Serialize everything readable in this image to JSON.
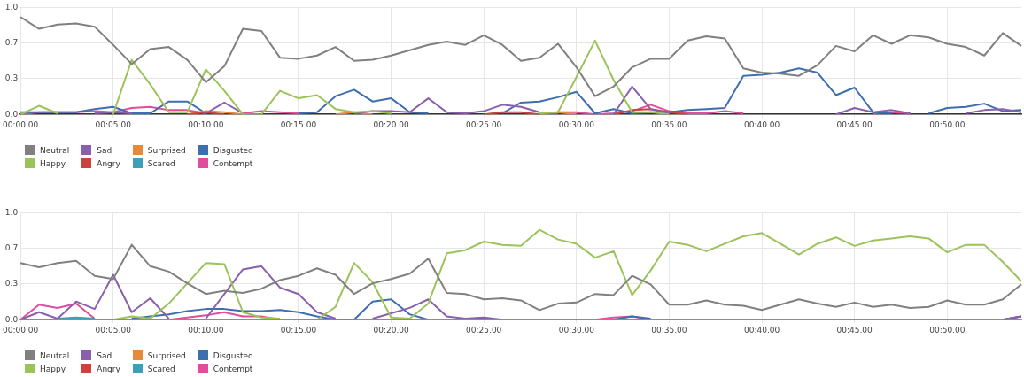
{
  "chart_data": [
    {
      "type": "line",
      "categories": [
        "00:00.00",
        null,
        null,
        null,
        null,
        "00:05.00",
        null,
        null,
        null,
        null,
        "00:10.00",
        null,
        null,
        null,
        null,
        "00:15.00",
        null,
        null,
        null,
        null,
        "00:20.00",
        null,
        null,
        null,
        null,
        "00:25.00",
        null,
        null,
        null,
        null,
        "00:30.00",
        null,
        null,
        null,
        null,
        "00:35.00",
        null,
        null,
        null,
        null,
        "00:40.00",
        null,
        null,
        null,
        null,
        "00:45.00",
        null,
        null,
        null,
        null,
        "00:50.00",
        null,
        null,
        null,
        null
      ],
      "ylim": [
        0,
        1
      ],
      "yticks": [
        {
          "value": 0,
          "label": "0.0"
        },
        {
          "value": 0.333,
          "label": "0.3"
        },
        {
          "value": 0.667,
          "label": "0.7"
        },
        {
          "value": 1,
          "label": "1.0"
        }
      ],
      "grid": true,
      "legend": "bottom",
      "series": [
        {
          "name": "Neutral",
          "color": "#808080",
          "values": [
            0.91,
            0.8,
            0.84,
            0.85,
            0.82,
            0.65,
            0.47,
            0.61,
            0.63,
            0.51,
            0.3,
            0.45,
            0.8,
            0.78,
            0.53,
            0.52,
            0.55,
            0.63,
            0.5,
            0.51,
            0.55,
            0.6,
            0.65,
            0.68,
            0.65,
            0.74,
            0.65,
            0.5,
            0.53,
            0.66,
            0.44,
            0.17,
            0.26,
            0.44,
            0.52,
            0.52,
            0.69,
            0.73,
            0.71,
            0.43,
            0.39,
            0.38,
            0.36,
            0.46,
            0.64,
            0.59,
            0.74,
            0.66,
            0.74,
            0.72,
            0.66,
            0.63,
            0.55,
            0.76,
            0.64
          ]
        },
        {
          "name": "Happy",
          "color": "#9cc35a",
          "values": [
            0,
            0.08,
            0.01,
            null,
            null,
            0,
            0.51,
            0.28,
            0.02,
            0.02,
            0.42,
            0.22,
            0,
            0,
            0.22,
            0.15,
            0.18,
            0.05,
            0.02,
            0.03,
            0.01,
            null,
            null,
            null,
            null,
            null,
            null,
            null,
            0.01,
            0.02,
            0.35,
            0.69,
            0.32,
            0.02,
            0.02,
            0,
            null,
            null,
            null,
            null,
            null,
            null,
            null,
            null,
            null,
            null,
            null,
            null,
            null,
            null,
            null,
            null,
            null,
            null,
            null
          ]
        },
        {
          "name": "Sad",
          "color": "#8a5fae",
          "values": [
            null,
            null,
            null,
            null,
            0.01,
            0.02,
            0.01,
            null,
            null,
            null,
            0.01,
            0.11,
            0.01,
            null,
            null,
            null,
            null,
            null,
            0.01,
            0.03,
            0.03,
            0.02,
            0.15,
            0.02,
            0.01,
            0.03,
            0.09,
            0.07,
            0.02,
            0,
            null,
            null,
            0,
            0.26,
            0.05,
            0.01,
            null,
            null,
            null,
            null,
            null,
            null,
            null,
            null,
            0,
            0.06,
            0.02,
            0.04,
            0.01,
            null,
            null,
            0.01,
            0.04,
            0.05,
            0.02
          ]
        },
        {
          "name": "Angry",
          "color": "#c9443f",
          "values": [
            null,
            null,
            null,
            null,
            null,
            null,
            null,
            null,
            null,
            0,
            0.02,
            0,
            null,
            null,
            null,
            null,
            null,
            null,
            null,
            null,
            null,
            null,
            null,
            null,
            null,
            0,
            0.02,
            0.02,
            0,
            null,
            null,
            null,
            0,
            0.04,
            0.05,
            0.02,
            0,
            null,
            null,
            null,
            null,
            null,
            null,
            null,
            null,
            null,
            null,
            null,
            null,
            null,
            null,
            null,
            null,
            null,
            null
          ]
        },
        {
          "name": "Surprised",
          "color": "#e8893a",
          "values": [
            null,
            null,
            null,
            null,
            null,
            null,
            null,
            null,
            null,
            0,
            0.03,
            0.02,
            0,
            null,
            null,
            null,
            null,
            0,
            0.02,
            0,
            null,
            null,
            null,
            null,
            null,
            null,
            null,
            null,
            0,
            0.02,
            0,
            null,
            null,
            null,
            null,
            null,
            null,
            null,
            null,
            null,
            null,
            null,
            null,
            null,
            null,
            null,
            null,
            null,
            null,
            null,
            null,
            null,
            null,
            null,
            null
          ]
        },
        {
          "name": "Scared",
          "color": "#3e9fb8",
          "values": [
            null,
            null,
            null,
            null,
            null,
            null,
            null,
            null,
            null,
            null,
            null,
            null,
            null,
            null,
            null,
            null,
            null,
            null,
            null,
            null,
            null,
            null,
            null,
            null,
            null,
            null,
            null,
            null,
            null,
            null,
            null,
            null,
            null,
            null,
            null,
            null,
            null,
            null,
            null,
            null,
            null,
            null,
            null,
            null,
            null,
            null,
            null,
            null,
            null,
            null,
            null,
            null,
            null,
            null,
            null
          ]
        },
        {
          "name": "Disgusted",
          "color": "#3d6fb0",
          "values": [
            0.02,
            0.02,
            0.02,
            0.02,
            0.05,
            0.07,
            0.01,
            0.01,
            0.12,
            0.12,
            0.01,
            null,
            null,
            null,
            null,
            0.01,
            0.02,
            0.17,
            0.23,
            0.12,
            0.15,
            0.02,
            0.01,
            null,
            null,
            null,
            0.01,
            0.11,
            0.12,
            0.16,
            0.21,
            0.01,
            0.05,
            0.01,
            0.02,
            0.02,
            0.04,
            0.05,
            0.06,
            0.36,
            0.37,
            0.39,
            0.43,
            0.39,
            0.18,
            0.25,
            0.02,
            0.01,
            null,
            0.01,
            0.06,
            0.07,
            0.1,
            0.03,
            0.04
          ]
        },
        {
          "name": "Contempt",
          "color": "#e04d9b",
          "values": [
            0,
            0.02,
            0.02,
            0.02,
            0.03,
            0.02,
            0.06,
            0.07,
            0.04,
            0.04,
            0.01,
            null,
            0.01,
            0.03,
            0.02,
            0.01,
            null,
            null,
            null,
            null,
            null,
            null,
            null,
            null,
            null,
            null,
            null,
            null,
            0.01,
            0.02,
            0.02,
            0,
            0.01,
            0.03,
            0.09,
            0.03,
            0.01,
            0.01,
            0.03,
            0.01,
            null,
            null,
            null,
            null,
            null,
            null,
            0.01,
            0.02,
            0.01,
            null,
            null,
            null,
            null,
            null,
            null
          ]
        }
      ]
    },
    {
      "type": "line",
      "categories": [
        "00:00.00",
        null,
        null,
        null,
        null,
        "00:05.00",
        null,
        null,
        null,
        null,
        "00:10.00",
        null,
        null,
        null,
        null,
        "00:15.00",
        null,
        null,
        null,
        null,
        "00:20.00",
        null,
        null,
        null,
        null,
        "00:25.00",
        null,
        null,
        null,
        null,
        "00:30.00",
        null,
        null,
        null,
        null,
        "00:35.00",
        null,
        null,
        null,
        null,
        "00:40.00",
        null,
        null,
        null,
        null,
        "00:45.00",
        null,
        null,
        null,
        null,
        "00:50.00",
        null,
        null,
        null,
        null
      ],
      "ylim": [
        0,
        1
      ],
      "yticks": [
        {
          "value": 0,
          "label": "0.0"
        },
        {
          "value": 0.333,
          "label": "0.3"
        },
        {
          "value": 0.667,
          "label": "0.7"
        },
        {
          "value": 1,
          "label": "1.0"
        }
      ],
      "grid": true,
      "legend": "bottom",
      "series": [
        {
          "name": "Neutral",
          "color": "#808080",
          "values": [
            0.53,
            0.49,
            0.53,
            0.55,
            0.41,
            0.38,
            0.7,
            0.5,
            0.45,
            0.34,
            0.24,
            0.27,
            0.25,
            0.29,
            0.37,
            0.41,
            0.48,
            0.42,
            0.24,
            0.34,
            0.38,
            0.43,
            0.57,
            0.25,
            0.24,
            0.19,
            0.2,
            0.18,
            0.09,
            0.15,
            0.16,
            0.24,
            0.23,
            0.41,
            0.33,
            0.14,
            0.14,
            0.18,
            0.14,
            0.13,
            0.09,
            0.14,
            0.19,
            0.15,
            0.12,
            0.16,
            0.12,
            0.14,
            0.11,
            0.12,
            0.18,
            0.14,
            0.14,
            0.19,
            0.33
          ]
        },
        {
          "name": "Happy",
          "color": "#9cc35a",
          "values": [
            null,
            null,
            null,
            null,
            null,
            0,
            0.03,
            0.01,
            0.15,
            0.34,
            0.53,
            0.52,
            0.07,
            0.02,
            0.01,
            null,
            0,
            0.12,
            0.53,
            0.35,
            0.02,
            0.01,
            0.15,
            0.62,
            0.65,
            0.73,
            0.7,
            0.69,
            0.84,
            0.75,
            0.71,
            0.58,
            0.64,
            0.23,
            0.46,
            0.73,
            0.7,
            0.64,
            0.71,
            0.78,
            0.81,
            0.71,
            0.61,
            0.71,
            0.77,
            0.69,
            0.74,
            0.76,
            0.78,
            0.76,
            0.63,
            0.7,
            0.7,
            0.54,
            0.36
          ]
        },
        {
          "name": "Sad",
          "color": "#8a5fae",
          "values": [
            0,
            0.07,
            0.01,
            0.17,
            0.1,
            0.42,
            0.07,
            0.2,
            0.01,
            null,
            0.01,
            0.24,
            0.47,
            0.5,
            0.3,
            0.24,
            0.07,
            0.01,
            null,
            0.01,
            0.06,
            0.11,
            0.19,
            0.03,
            0.01,
            0.02,
            0,
            null,
            null,
            null,
            null,
            null,
            null,
            null,
            null,
            null,
            null,
            null,
            null,
            null,
            null,
            null,
            null,
            null,
            null,
            null,
            null,
            null,
            null,
            null,
            null,
            null,
            null,
            0,
            0.03
          ]
        },
        {
          "name": "Angry",
          "color": "#c9443f",
          "values": [
            null,
            null,
            null,
            null,
            null,
            null,
            null,
            null,
            null,
            null,
            null,
            null,
            null,
            null,
            null,
            null,
            null,
            null,
            null,
            null,
            null,
            null,
            null,
            null,
            null,
            null,
            null,
            null,
            null,
            null,
            null,
            null,
            null,
            null,
            null,
            null,
            null,
            null,
            null,
            null,
            null,
            null,
            null,
            null,
            null,
            null,
            null,
            null,
            null,
            null,
            null,
            null,
            null,
            null,
            null
          ]
        },
        {
          "name": "Surprised",
          "color": "#e8893a",
          "values": [
            null,
            null,
            null,
            null,
            null,
            null,
            null,
            null,
            null,
            null,
            null,
            null,
            null,
            null,
            null,
            null,
            null,
            null,
            null,
            null,
            null,
            null,
            null,
            null,
            null,
            null,
            null,
            null,
            null,
            null,
            null,
            null,
            null,
            null,
            null,
            null,
            null,
            null,
            null,
            null,
            null,
            null,
            null,
            null,
            null,
            null,
            null,
            null,
            null,
            null,
            null,
            null,
            null,
            null,
            null
          ]
        },
        {
          "name": "Scared",
          "color": "#3e9fb8",
          "values": [
            null,
            null,
            0.01,
            0.02,
            0.01,
            null,
            null,
            null,
            null,
            null,
            null,
            null,
            null,
            null,
            null,
            null,
            null,
            null,
            null,
            null,
            null,
            null,
            null,
            null,
            null,
            null,
            null,
            null,
            null,
            null,
            null,
            null,
            null,
            null,
            null,
            null,
            null,
            null,
            null,
            null,
            null,
            null,
            null,
            null,
            null,
            null,
            null,
            null,
            null,
            null,
            null,
            null,
            null,
            null,
            null
          ]
        },
        {
          "name": "Disgusted",
          "color": "#3d6fb0",
          "values": [
            null,
            null,
            null,
            null,
            null,
            null,
            0.01,
            0.03,
            0.05,
            0.08,
            0.1,
            0.1,
            0.08,
            0.08,
            0.09,
            0.07,
            0.03,
            0,
            0,
            0.17,
            0.19,
            0.05,
            0,
            null,
            null,
            null,
            null,
            null,
            null,
            null,
            null,
            null,
            0,
            0.03,
            0.01,
            null,
            null,
            null,
            null,
            null,
            null,
            null,
            null,
            null,
            null,
            null,
            null,
            null,
            null,
            null,
            null,
            null,
            null,
            0,
            0.03
          ]
        },
        {
          "name": "Contempt",
          "color": "#e04d9b",
          "values": [
            0,
            0.14,
            0.11,
            0.15,
            0.01,
            null,
            null,
            null,
            0,
            0.02,
            0.04,
            0.07,
            0.03,
            0.03,
            0,
            null,
            null,
            null,
            null,
            null,
            null,
            null,
            null,
            null,
            null,
            null,
            null,
            null,
            null,
            null,
            null,
            0,
            0.02,
            0.03,
            0,
            null,
            null,
            null,
            null,
            null,
            null,
            null,
            null,
            null,
            null,
            null,
            null,
            null,
            null,
            null,
            null,
            null,
            null,
            0,
            0.03
          ]
        }
      ]
    }
  ]
}
